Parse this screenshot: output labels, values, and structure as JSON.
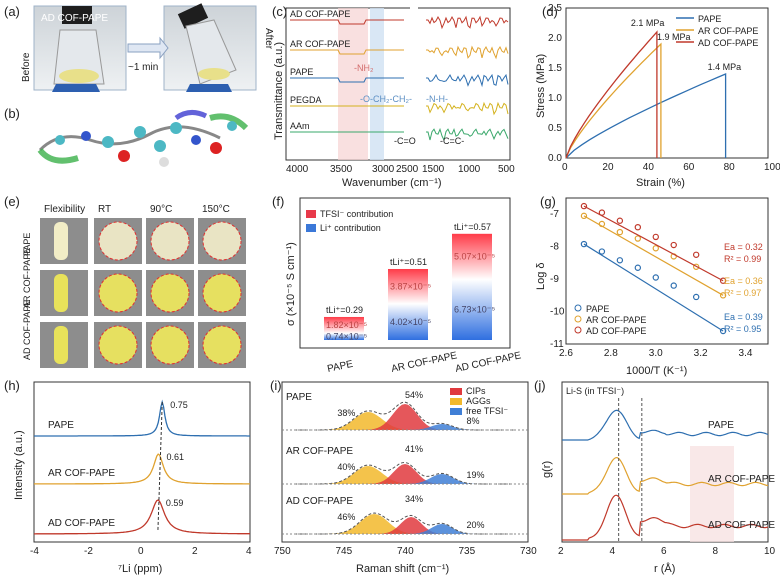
{
  "colors": {
    "pape": "#2e6fb0",
    "ar": "#e0a22f",
    "ad": "#c0392b",
    "pegda": "#d4b21e",
    "aam": "#3aa86b",
    "tfsi": "#e8394a",
    "li": "#3b78d8",
    "cips": "#e03a3e",
    "aggs": "#f2b92b",
    "free": "#3f7fd6"
  },
  "panels": {
    "a": {
      "label": "(a)",
      "before": "Before",
      "after": "After",
      "arrow": "~1 min",
      "sample": "AD COF-PAPE"
    },
    "b": {
      "label": "(b)"
    },
    "c": {
      "label": "(c)"
    },
    "d": {
      "label": "(d)"
    },
    "e": {
      "label": "(e)",
      "cols": [
        "Flexibility",
        "RT",
        "90°C",
        "150°C"
      ],
      "rows": [
        "PAPE",
        "AR COF-PAPE",
        "AD COF-PAPE"
      ]
    },
    "f": {
      "label": "(f)"
    },
    "g": {
      "label": "(g)"
    },
    "h": {
      "label": "(h)"
    },
    "i": {
      "label": "(i)"
    },
    "j": {
      "label": "(j)"
    }
  },
  "chart_data": [
    {
      "id": "c",
      "type": "line",
      "xlabel": "Wavenumber (cm⁻¹)",
      "ylabel": "Transmittance (a.u.)",
      "xticks": [
        "4000",
        "3500",
        "3000",
        "2500",
        "1500",
        "1000",
        "500"
      ],
      "series": [
        {
          "name": "AD COF-PAPE"
        },
        {
          "name": "AR COF-PAPE"
        },
        {
          "name": "PAPE"
        },
        {
          "name": "PEGDA"
        },
        {
          "name": "AAm"
        }
      ],
      "annotations": [
        "-NH₂",
        "-O-CH₂-CH₂-",
        "-N-H-",
        "-C=O",
        "-C=C-"
      ]
    },
    {
      "id": "d",
      "type": "line",
      "xlabel": "Strain (%)",
      "ylabel": "Stress (MPa)",
      "xlim": [
        0,
        100
      ],
      "ylim": [
        0,
        2.5
      ],
      "xticks": [
        "0",
        "20",
        "40",
        "60",
        "80",
        "100"
      ],
      "yticks": [
        "0.0",
        "0.5",
        "1.0",
        "1.5",
        "2.0",
        "2.5"
      ],
      "series": [
        {
          "name": "PAPE",
          "strain": 79,
          "stress": 1.4,
          "label": "1.4 MPa"
        },
        {
          "name": "AR COF-PAPE",
          "strain": 47,
          "stress": 1.9,
          "label": "1.9 MPa"
        },
        {
          "name": "AD COF-PAPE",
          "strain": 45,
          "stress": 2.1,
          "label": "2.1 MPa"
        }
      ]
    },
    {
      "id": "f",
      "type": "bar",
      "ylabel": "σ (×10⁻⁵ S cm⁻¹)",
      "legend": [
        "TFSI⁻ contribution",
        "Li⁺ contribution"
      ],
      "categories": [
        "PAPE",
        "AR COF-PAPE",
        "AD COF-PAPE"
      ],
      "tfsi": [
        1.82,
        3.87,
        5.07
      ],
      "li": [
        0.74,
        4.02,
        6.73
      ],
      "tfsi_labels": [
        "1.82×10⁻⁵",
        "3.87×10⁻⁵",
        "5.07×10⁻⁵"
      ],
      "li_labels": [
        "0.74×10⁻⁵",
        "4.02×10⁻⁵",
        "6.73×10⁻⁵"
      ],
      "tLi_labels": [
        "tLi⁺=0.29",
        "tLi⁺=0.51",
        "tLi⁺=0.57"
      ]
    },
    {
      "id": "g",
      "type": "scatter",
      "xlabel": "1000/T (K⁻¹)",
      "ylabel": "Log δ",
      "xlim": [
        2.6,
        3.5
      ],
      "ylim": [
        -11,
        -6.5
      ],
      "xticks": [
        "2.6",
        "2.8",
        "3.0",
        "3.2",
        "3.4"
      ],
      "yticks": [
        "-7",
        "-8",
        "-9",
        "-10",
        "-11"
      ],
      "x": [
        2.68,
        2.76,
        2.84,
        2.92,
        3.0,
        3.08,
        3.18,
        3.3
      ],
      "series": [
        {
          "name": "PAPE",
          "y": [
            -7.92,
            -8.15,
            -8.42,
            -8.65,
            -8.95,
            -9.2,
            -9.55,
            -10.6
          ],
          "ea": "Ea = 0.39",
          "r2": "R² = 0.95"
        },
        {
          "name": "AR COF-PAPE",
          "y": [
            -7.05,
            -7.3,
            -7.55,
            -7.75,
            -8.05,
            -8.3,
            -8.62,
            -9.5
          ],
          "ea": "Ea = 0.36",
          "r2": "R² = 0.97"
        },
        {
          "name": "AD COF-PAPE",
          "y": [
            -6.75,
            -6.95,
            -7.2,
            -7.4,
            -7.7,
            -7.95,
            -8.25,
            -9.05
          ],
          "ea": "Ea = 0.32",
          "r2": "R² = 0.99"
        }
      ]
    },
    {
      "id": "h",
      "type": "line",
      "xlabel": "⁷Li (ppm)",
      "ylabel": "Intensity (a.u.)",
      "xlim": [
        -4,
        4
      ],
      "xticks": [
        "-4",
        "-2",
        "0",
        "2",
        "4"
      ],
      "series": [
        {
          "name": "PAPE",
          "peak": 0.75,
          "label": "0.75"
        },
        {
          "name": "AR COF-PAPE",
          "peak": 0.61,
          "label": "0.61"
        },
        {
          "name": "AD COF-PAPE",
          "peak": 0.59,
          "label": "0.59"
        }
      ]
    },
    {
      "id": "i",
      "type": "area",
      "xlabel": "Raman shift (cm⁻¹)",
      "xlim": [
        750,
        730
      ],
      "xticks": [
        "750",
        "745",
        "740",
        "735",
        "730"
      ],
      "legend": [
        "CIPs",
        "AGGs",
        "free TFSI⁻"
      ],
      "series": [
        {
          "name": "PAPE",
          "aggs": "38%",
          "cips": "54%",
          "free": "8%"
        },
        {
          "name": "AR COF-PAPE",
          "aggs": "40%",
          "cips": "41%",
          "free": "19%"
        },
        {
          "name": "AD COF-PAPE",
          "aggs": "46%",
          "cips": "34%",
          "free": "20%"
        }
      ]
    },
    {
      "id": "j",
      "type": "line",
      "xlabel": "r (Å)",
      "ylabel": "g(r)",
      "xlim": [
        2,
        10
      ],
      "xticks": [
        "2",
        "4",
        "6",
        "8",
        "10"
      ],
      "annotation": "Li-S (in TFSI⁻)",
      "series": [
        {
          "name": "PAPE"
        },
        {
          "name": "AR COF-PAPE"
        },
        {
          "name": "AD COF-PAPE"
        }
      ]
    }
  ]
}
